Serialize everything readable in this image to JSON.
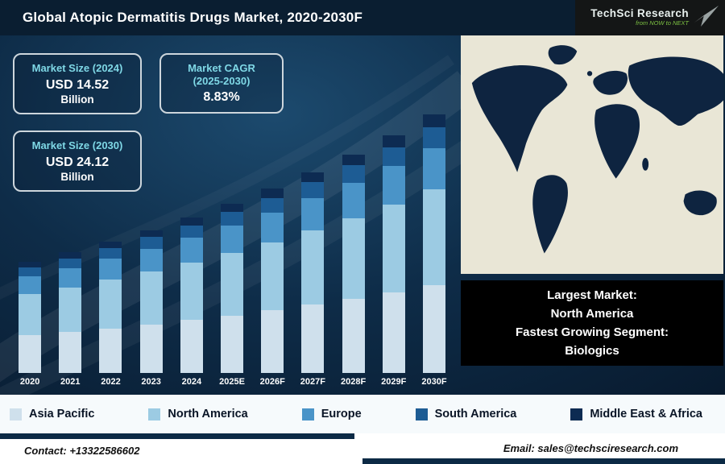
{
  "header": {
    "title": "Global Atopic Dermatitis Drugs Market, 2020-2030F",
    "logo": {
      "brand": "TechSci Research",
      "tagline": "from NOW to NEXT"
    }
  },
  "stats": {
    "market_size_2024": {
      "label": "Market Size (2024)",
      "value": "USD 14.52",
      "unit": "Billion"
    },
    "market_cagr": {
      "label_line1": "Market CAGR",
      "label_line2": "(2025-2030)",
      "value": "8.83%"
    },
    "market_size_2030": {
      "label": "Market Size (2030)",
      "value": "USD 24.12",
      "unit": "Billion"
    }
  },
  "chart_data": {
    "type": "bar",
    "stacked": true,
    "title": "Global Atopic Dermatitis Drugs Market, 2020-2030F",
    "unit": "USD Billion",
    "categories": [
      "2020",
      "2021",
      "2022",
      "2023",
      "2024",
      "2025E",
      "2026F",
      "2027F",
      "2028F",
      "2029F",
      "2030F"
    ],
    "series": [
      {
        "name": "Asia Pacific",
        "color": "#cfe0ec",
        "values": [
          3.52,
          3.83,
          4.17,
          4.54,
          4.94,
          5.37,
          5.85,
          6.36,
          6.93,
          7.54,
          8.2
        ]
      },
      {
        "name": "North America",
        "color": "#9ccbe3",
        "values": [
          3.83,
          4.17,
          4.54,
          4.94,
          5.37,
          5.85,
          6.36,
          6.93,
          7.54,
          8.2,
          8.92
        ]
      },
      {
        "name": "Europe",
        "color": "#4a94c8",
        "values": [
          1.66,
          1.8,
          1.96,
          2.13,
          2.32,
          2.53,
          2.75,
          3.0,
          3.26,
          3.55,
          3.86
        ]
      },
      {
        "name": "South America",
        "color": "#1d5c94",
        "values": [
          0.83,
          0.9,
          0.98,
          1.07,
          1.16,
          1.26,
          1.38,
          1.5,
          1.63,
          1.77,
          1.93
        ]
      },
      {
        "name": "Middle East & Africa",
        "color": "#0d2b52",
        "values": [
          0.52,
          0.56,
          0.61,
          0.67,
          0.73,
          0.79,
          0.86,
          0.94,
          1.02,
          1.11,
          1.21
        ]
      }
    ],
    "totals": [
      10.35,
      11.26,
      12.26,
      13.34,
      14.52,
      15.8,
      17.2,
      18.72,
      20.37,
      22.17,
      24.12
    ],
    "ylim": [
      0,
      25
    ],
    "grid": false,
    "y_axis_visible": false,
    "legend_position": "bottom"
  },
  "callout": {
    "line1": "Largest Market:",
    "line2": "North America",
    "line3": "Fastest Growing Segment:",
    "line4": "Biologics"
  },
  "footer": {
    "contact": "Contact: +13322586602",
    "email": "Email: sales@techsciresearch.com"
  },
  "icons": {
    "logo_arrow": "paper-dart-arrow",
    "map": "world-map-silhouette"
  }
}
